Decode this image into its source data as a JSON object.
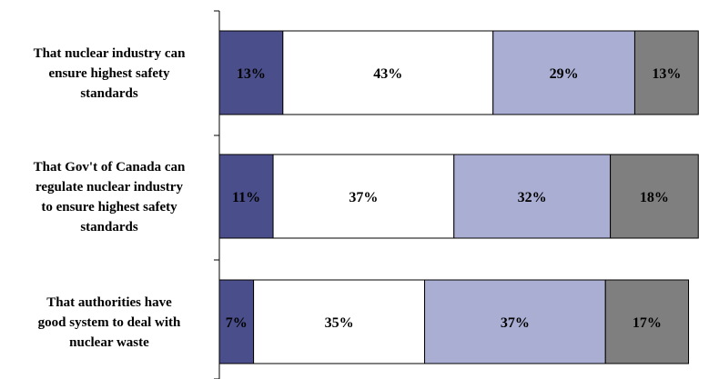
{
  "chart_data": {
    "type": "bar",
    "orientation": "horizontal",
    "stacked": true,
    "percent": true,
    "title": "",
    "xlabel": "",
    "ylabel": "",
    "xlim": [
      0,
      100
    ],
    "grid": false,
    "legend": "none",
    "categories": [
      {
        "lines": [
          "That nuclear industry can",
          "ensure highest safety",
          "standards"
        ]
      },
      {
        "lines": [
          "That Gov't of Canada can",
          "regulate nuclear industry",
          "to ensure highest safety",
          "standards"
        ]
      },
      {
        "lines": [
          "That authorities have",
          "good system to deal with",
          "nuclear waste"
        ]
      }
    ],
    "series": [
      {
        "color": "#4a4e8a",
        "values": [
          13,
          11,
          7
        ]
      },
      {
        "color": "#ffffff",
        "values": [
          43,
          37,
          35
        ]
      },
      {
        "color": "#aaaed3",
        "values": [
          29,
          32,
          37
        ]
      },
      {
        "color": "#7f7f7f",
        "values": [
          13,
          18,
          17
        ]
      }
    ],
    "value_suffix": "%"
  }
}
